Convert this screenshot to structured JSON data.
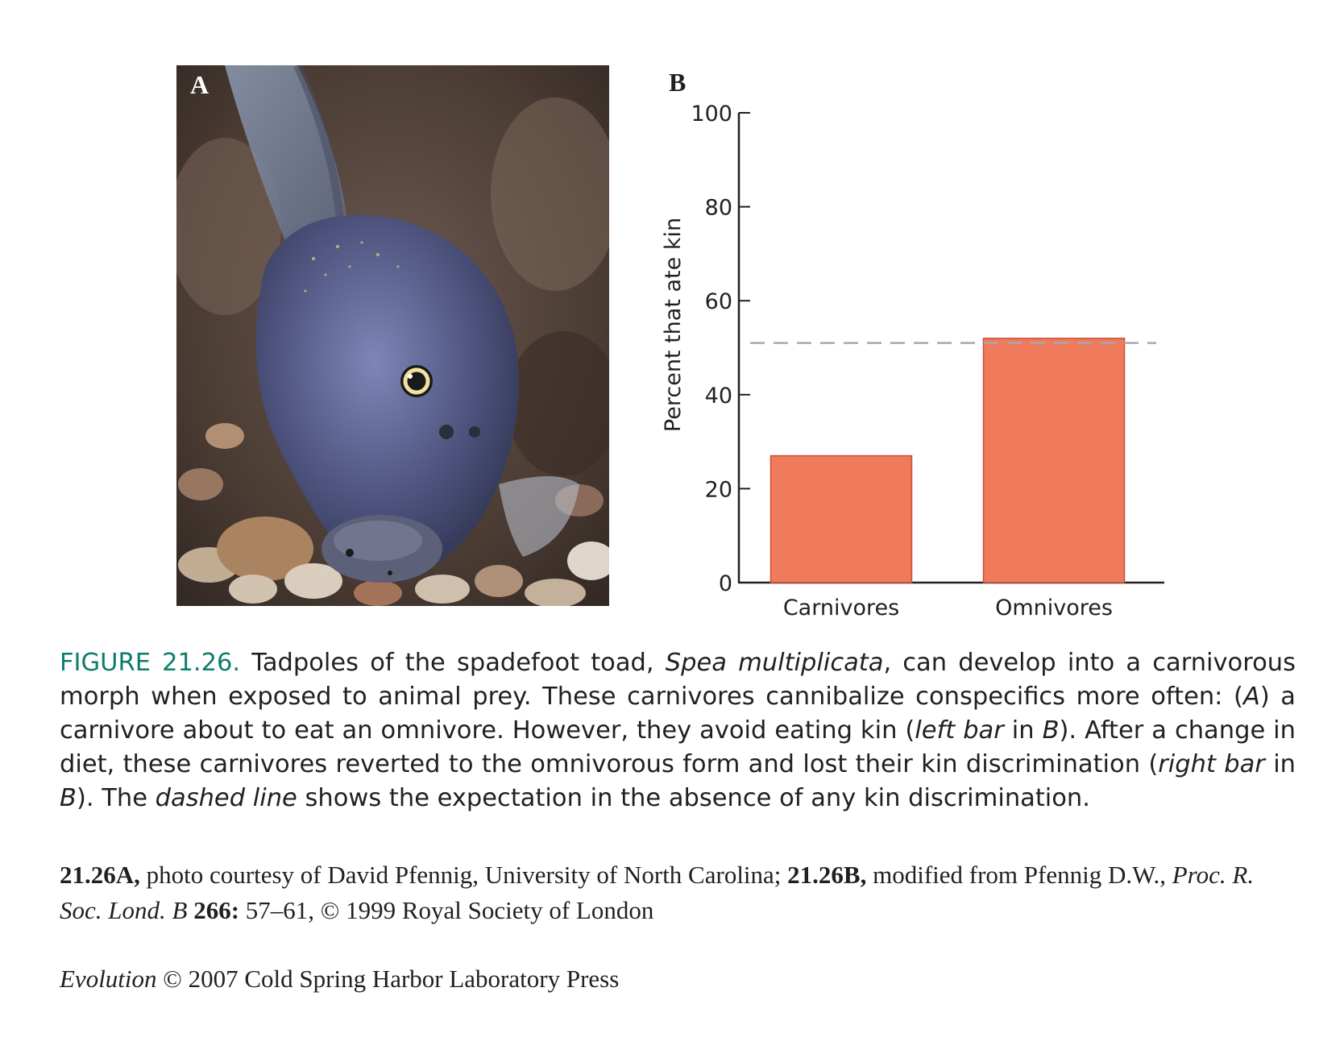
{
  "panel_a": {
    "label": "A"
  },
  "chart_data": {
    "type": "bar",
    "panel_label": "B",
    "categories": [
      "Carnivores",
      "Omnivores"
    ],
    "values": [
      27,
      52
    ],
    "ylabel": "Percent that ate kin",
    "xlabel": "",
    "ylim": [
      0,
      100
    ],
    "yticks": [
      0,
      20,
      40,
      60,
      80,
      100
    ],
    "reference_line": 51,
    "reference_line_style": "dashed",
    "grid": false,
    "bar_color": "#f07a5c",
    "reference_color": "#a7a9ac"
  },
  "caption": {
    "figure_number": "FIGURE 21.26.",
    "part1": " Tadpoles of the spadefoot toad, ",
    "species": "Spea multiplicata",
    "part2": ", can develop into a carnivorous morph when exposed to animal prey. These carnivores cannibalize conspecifics more often: (",
    "ref_a": "A",
    "part3": ") a carnivore about to eat an omnivore. However, they avoid eating kin (",
    "left_bar": "left bar",
    "part4": " in ",
    "ref_b1": "B",
    "part5": "). After a change in diet, these carnivores reverted to the omnivorous form and lost their kin discrimination (",
    "right_bar": "right bar",
    "part6": " in ",
    "ref_b2": "B",
    "part7": "). The ",
    "dashed_line": "dashed line",
    "part8": " shows the expectation in the absence of any kin discrimination."
  },
  "credits": {
    "ref_a_label": "21.26A,",
    "ref_a_text": " photo courtesy of David Pfennig, University of North Carolina; ",
    "ref_b_label": "21.26B,",
    "ref_b_text": " modified from Pfennig D.W., ",
    "journal": "Proc. R. Soc. Lond. B",
    "volume": " 266:",
    "pages": " 57–61, © 1999 Royal Society of London"
  },
  "copyright": {
    "book": "Evolution",
    "text": " © 2007 Cold Spring Harbor Laboratory Press"
  }
}
